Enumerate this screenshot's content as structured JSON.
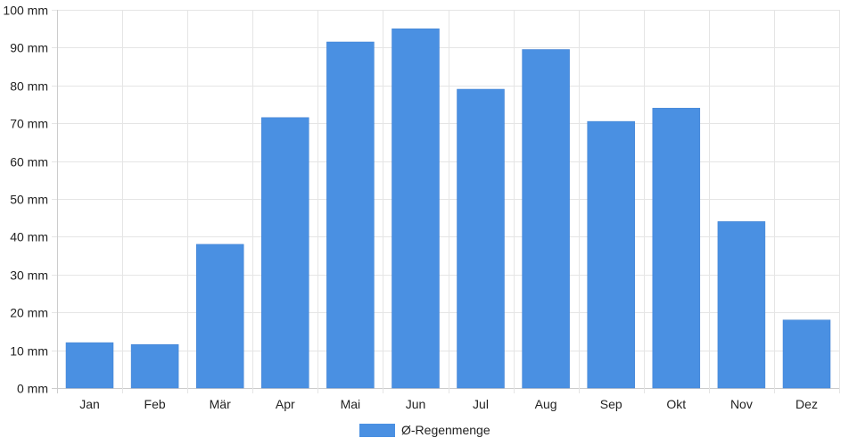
{
  "chart_data": {
    "type": "bar",
    "categories": [
      "Jan",
      "Feb",
      "Mär",
      "Apr",
      "Mai",
      "Jun",
      "Jul",
      "Aug",
      "Sep",
      "Okt",
      "Nov",
      "Dez"
    ],
    "series": [
      {
        "name": "Ø-Regenmenge",
        "values": [
          12,
          11.5,
          38,
          71.5,
          91.5,
          95,
          79,
          89.5,
          70.5,
          74,
          44,
          18
        ]
      }
    ],
    "ylim": [
      0,
      100
    ],
    "yticks": [
      0,
      10,
      20,
      30,
      40,
      50,
      60,
      70,
      80,
      90,
      100
    ],
    "y_unit": "mm",
    "grid": true,
    "legend_position": "bottom-center",
    "colors": {
      "bar": "#4a90e2",
      "grid": "#e5e5e5",
      "axis": "#cccccc",
      "text": "#222222"
    }
  }
}
